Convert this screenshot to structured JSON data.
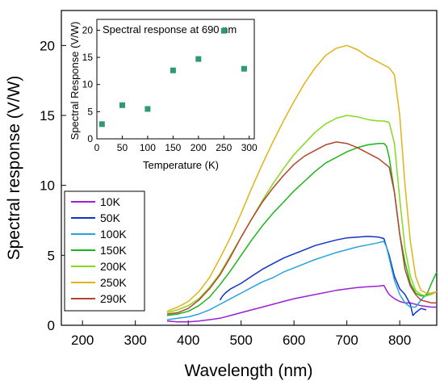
{
  "chart_data": [
    {
      "type": "line",
      "xlabel": "Wavelength (nm)",
      "ylabel": "Spectral response (V/W)",
      "xlim": [
        160,
        870
      ],
      "ylim": [
        0,
        22.5
      ],
      "xticks": [
        200,
        300,
        400,
        500,
        600,
        700,
        800
      ],
      "yticks": [
        0,
        5,
        10,
        15,
        20
      ],
      "grid": false,
      "legend": "bottom-left",
      "series": [
        {
          "name": "10K",
          "color": "#9b1fd6",
          "x": [
            360,
            380,
            400,
            420,
            440,
            460,
            480,
            500,
            520,
            540,
            560,
            580,
            600,
            620,
            640,
            660,
            680,
            700,
            720,
            740,
            760,
            770,
            775,
            780,
            790,
            800,
            810,
            820,
            830,
            840,
            850,
            860,
            870
          ],
          "y": [
            0.3,
            0.25,
            0.25,
            0.3,
            0.4,
            0.5,
            0.7,
            0.9,
            1.1,
            1.3,
            1.5,
            1.7,
            1.9,
            2.05,
            2.2,
            2.35,
            2.5,
            2.6,
            2.7,
            2.75,
            2.8,
            2.85,
            2.5,
            2.2,
            1.9,
            1.7,
            1.6,
            1.6,
            1.5,
            1.4,
            1.35,
            1.3,
            1.3
          ]
        },
        {
          "name": "50K",
          "color": "#1033c8",
          "x": [
            460,
            465,
            470,
            480,
            500,
            520,
            540,
            560,
            580,
            600,
            620,
            640,
            660,
            680,
            700,
            720,
            740,
            760,
            770,
            780,
            790,
            800,
            810,
            820,
            825,
            830,
            840,
            850
          ],
          "y": [
            1.8,
            2.1,
            2.3,
            2.6,
            3.0,
            3.5,
            4.0,
            4.4,
            4.8,
            5.1,
            5.4,
            5.7,
            5.9,
            6.1,
            6.25,
            6.3,
            6.35,
            6.3,
            6.2,
            5.0,
            3.5,
            2.6,
            2.2,
            1.5,
            0.7,
            0.9,
            1.2,
            1.1
          ]
        },
        {
          "name": "100K",
          "color": "#2aa1e0",
          "x": [
            360,
            380,
            400,
            420,
            440,
            460,
            480,
            500,
            520,
            540,
            560,
            580,
            600,
            620,
            640,
            660,
            680,
            700,
            720,
            740,
            760,
            770,
            775,
            780,
            790,
            800,
            810,
            820,
            830,
            840,
            850,
            860,
            870
          ],
          "y": [
            0.4,
            0.5,
            0.6,
            0.8,
            1.1,
            1.5,
            1.9,
            2.3,
            2.7,
            3.1,
            3.4,
            3.8,
            4.1,
            4.4,
            4.7,
            4.95,
            5.2,
            5.4,
            5.6,
            5.75,
            5.9,
            6.0,
            5.6,
            4.8,
            3.2,
            2.2,
            1.6,
            1.3,
            1.3,
            1.8,
            2.2,
            2.3,
            2.4
          ]
        },
        {
          "name": "150K",
          "color": "#1ab51a",
          "x": [
            360,
            380,
            400,
            420,
            440,
            460,
            480,
            500,
            520,
            540,
            560,
            580,
            600,
            620,
            640,
            660,
            680,
            700,
            720,
            740,
            760,
            770,
            775,
            780,
            790,
            800,
            810,
            820,
            830,
            840,
            850,
            860,
            870
          ],
          "y": [
            0.7,
            0.8,
            1.0,
            1.4,
            2.0,
            2.9,
            3.9,
            5.0,
            6.1,
            7.1,
            8.0,
            8.8,
            9.6,
            10.3,
            11.0,
            11.6,
            12.0,
            12.4,
            12.7,
            12.9,
            13.0,
            13.0,
            12.8,
            12.0,
            9.5,
            6.5,
            4.5,
            3.0,
            2.3,
            2.1,
            2.1,
            3.0,
            3.8
          ]
        },
        {
          "name": "200K",
          "color": "#86d91d",
          "x": [
            360,
            380,
            400,
            420,
            440,
            460,
            480,
            500,
            520,
            540,
            560,
            580,
            600,
            620,
            640,
            660,
            680,
            700,
            720,
            740,
            760,
            770,
            780,
            790,
            800,
            810,
            820,
            830,
            840,
            850,
            860,
            870
          ],
          "y": [
            0.9,
            1.1,
            1.4,
            1.9,
            2.7,
            3.7,
            5.0,
            6.3,
            7.6,
            8.9,
            10.1,
            11.2,
            12.2,
            13.0,
            13.8,
            14.4,
            14.8,
            15.0,
            14.9,
            14.7,
            14.6,
            14.6,
            14.5,
            13.0,
            9.0,
            5.5,
            3.5,
            2.5,
            2.2,
            2.1,
            2.2,
            2.4
          ]
        },
        {
          "name": "250K",
          "color": "#e0b316",
          "x": [
            360,
            380,
            400,
            420,
            440,
            460,
            480,
            500,
            520,
            540,
            560,
            580,
            600,
            620,
            640,
            660,
            680,
            700,
            720,
            740,
            760,
            780,
            790,
            800,
            810,
            820,
            830,
            840,
            850,
            860,
            870
          ],
          "y": [
            1.0,
            1.3,
            1.7,
            2.4,
            3.4,
            4.8,
            6.3,
            8.0,
            9.8,
            11.5,
            13.1,
            14.6,
            16.0,
            17.3,
            18.4,
            19.3,
            19.8,
            20.0,
            19.7,
            19.2,
            18.8,
            18.4,
            17.9,
            15.0,
            10.0,
            6.0,
            3.5,
            2.5,
            2.3,
            2.3,
            2.4
          ]
        },
        {
          "name": "290K",
          "color": "#b5442e",
          "x": [
            360,
            380,
            400,
            420,
            440,
            460,
            480,
            500,
            520,
            540,
            560,
            580,
            600,
            620,
            640,
            660,
            680,
            700,
            720,
            740,
            760,
            780,
            790,
            800,
            810,
            820,
            830,
            840,
            850,
            860,
            870
          ],
          "y": [
            0.8,
            0.9,
            1.2,
            1.8,
            2.6,
            3.6,
            4.9,
            6.3,
            7.6,
            8.8,
            9.8,
            10.7,
            11.5,
            12.1,
            12.5,
            12.9,
            13.1,
            13.0,
            12.7,
            12.3,
            11.9,
            11.3,
            9.5,
            6.5,
            4.0,
            2.8,
            2.2,
            1.8,
            1.7,
            1.6,
            1.6
          ]
        }
      ]
    },
    {
      "type": "scatter",
      "title": "Spectral response at 690 nm",
      "xlabel": "Temperature (K)",
      "ylabel": "Spectral Response (V/W)",
      "xlim": [
        0,
        310
      ],
      "ylim": [
        0,
        22
      ],
      "xticks": [
        0,
        50,
        100,
        150,
        200,
        250,
        300
      ],
      "yticks": [
        0,
        5,
        10,
        15,
        20
      ],
      "grid": false,
      "marker_color": "#2e9a70",
      "x": [
        10,
        50,
        100,
        150,
        200,
        250,
        290
      ],
      "y": [
        2.7,
        6.2,
        5.5,
        12.6,
        14.7,
        19.9,
        12.9
      ]
    }
  ]
}
